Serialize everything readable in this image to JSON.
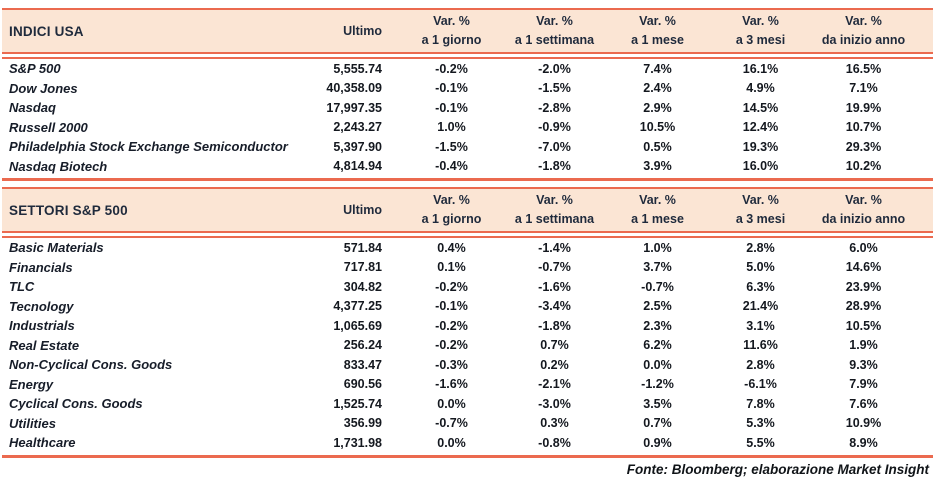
{
  "page": {
    "footer": "Fonte: Bloomberg; elaborazione Market Insight"
  },
  "colors": {
    "accent_line": "#EB6A4F",
    "header_background": "#FBE5D4",
    "header_text": "#1F2A3C",
    "body_text": "#14181F"
  },
  "columns": {
    "ultimo": "Ultimo",
    "var_top": "Var. %",
    "var_bottom": [
      "a 1 giorno",
      "a 1 settimana",
      "a 1 mese",
      "a 3 mesi",
      "da inizio anno"
    ]
  },
  "indici_usa": {
    "title": "INDICI USA",
    "rows": [
      {
        "name": "S&P 500",
        "ultimo": "5,555.74",
        "v1": "-0.2%",
        "v2": "-2.0%",
        "v3": "7.4%",
        "v4": "16.1%",
        "v5": "16.5%"
      },
      {
        "name": "Dow Jones",
        "ultimo": "40,358.09",
        "v1": "-0.1%",
        "v2": "-1.5%",
        "v3": "2.4%",
        "v4": "4.9%",
        "v5": "7.1%"
      },
      {
        "name": "Nasdaq",
        "ultimo": "17,997.35",
        "v1": "-0.1%",
        "v2": "-2.8%",
        "v3": "2.9%",
        "v4": "14.5%",
        "v5": "19.9%"
      },
      {
        "name": "Russell 2000",
        "ultimo": "2,243.27",
        "v1": "1.0%",
        "v2": "-0.9%",
        "v3": "10.5%",
        "v4": "12.4%",
        "v5": "10.7%"
      },
      {
        "name": "Philadelphia Stock Exchange Semiconductor",
        "ultimo": "5,397.90",
        "v1": "-1.5%",
        "v2": "-7.0%",
        "v3": "0.5%",
        "v4": "19.3%",
        "v5": "29.3%"
      },
      {
        "name": "Nasdaq Biotech",
        "ultimo": "4,814.94",
        "v1": "-0.4%",
        "v2": "-1.8%",
        "v3": "3.9%",
        "v4": "16.0%",
        "v5": "10.2%"
      }
    ]
  },
  "settori": {
    "title": "SETTORI S&P 500",
    "rows": [
      {
        "name": "Basic Materials",
        "ultimo": "571.84",
        "v1": "0.4%",
        "v2": "-1.4%",
        "v3": "1.0%",
        "v4": "2.8%",
        "v5": "6.0%"
      },
      {
        "name": "Financials",
        "ultimo": "717.81",
        "v1": "0.1%",
        "v2": "-0.7%",
        "v3": "3.7%",
        "v4": "5.0%",
        "v5": "14.6%"
      },
      {
        "name": "TLC",
        "ultimo": "304.82",
        "v1": "-0.2%",
        "v2": "-1.6%",
        "v3": "-0.7%",
        "v4": "6.3%",
        "v5": "23.9%"
      },
      {
        "name": "Tecnology",
        "ultimo": "4,377.25",
        "v1": "-0.1%",
        "v2": "-3.4%",
        "v3": "2.5%",
        "v4": "21.4%",
        "v5": "28.9%"
      },
      {
        "name": "Industrials",
        "ultimo": "1,065.69",
        "v1": "-0.2%",
        "v2": "-1.8%",
        "v3": "2.3%",
        "v4": "3.1%",
        "v5": "10.5%"
      },
      {
        "name": "Real Estate",
        "ultimo": "256.24",
        "v1": "-0.2%",
        "v2": "0.7%",
        "v3": "6.2%",
        "v4": "11.6%",
        "v5": "1.9%"
      },
      {
        "name": "Non-Cyclical Cons. Goods",
        "ultimo": "833.47",
        "v1": "-0.3%",
        "v2": "0.2%",
        "v3": "0.0%",
        "v4": "2.8%",
        "v5": "9.3%"
      },
      {
        "name": "Energy",
        "ultimo": "690.56",
        "v1": "-1.6%",
        "v2": "-2.1%",
        "v3": "-1.2%",
        "v4": "-6.1%",
        "v5": "7.9%"
      },
      {
        "name": "Cyclical Cons. Goods",
        "ultimo": "1,525.74",
        "v1": "0.0%",
        "v2": "-3.0%",
        "v3": "3.5%",
        "v4": "7.8%",
        "v5": "7.6%"
      },
      {
        "name": "Utilities",
        "ultimo": "356.99",
        "v1": "-0.7%",
        "v2": "0.3%",
        "v3": "0.7%",
        "v4": "5.3%",
        "v5": "10.9%"
      },
      {
        "name": "Healthcare",
        "ultimo": "1,731.98",
        "v1": "0.0%",
        "v2": "-0.8%",
        "v3": "0.9%",
        "v4": "5.5%",
        "v5": "8.9%"
      }
    ]
  }
}
